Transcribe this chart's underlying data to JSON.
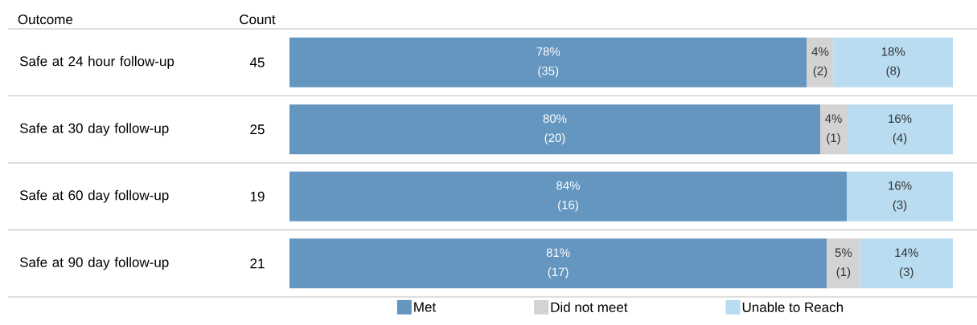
{
  "chart_data": {
    "type": "bar",
    "orientation": "horizontal",
    "stacked": true,
    "annotations": [
      "Outcome",
      "Count",
      "45",
      "25",
      "19",
      "21"
    ],
    "categories": [
      "Safe at 24 hour follow-up",
      "Safe at 30 day follow-up",
      "Safe at 60 day follow-up",
      "Safe at 90 day follow-up"
    ],
    "xlim": [
      0,
      100
    ],
    "tick_labels": "y",
    "series": [
      {
        "name": "Met",
        "color": "#6596c0",
        "values": [
          78,
          80,
          84,
          81
        ],
        "value_labels": [
          "78% (35)",
          "80% (20)",
          "84% (16)",
          "81% (17)"
        ]
      },
      {
        "name": "Did not meet",
        "color": "#d3d3d3",
        "values": [
          4,
          4,
          null,
          5
        ],
        "value_labels": [
          "4% (2)",
          "4% (1)",
          null,
          "5% (1)"
        ]
      },
      {
        "name": "Unable to Reach",
        "color": "#b9dcf0",
        "values": [
          18,
          16,
          16,
          14
        ],
        "value_labels": [
          "18% (8)",
          "16% (4)",
          "16% (3)",
          "14% (3)"
        ]
      }
    ],
    "legend": "bottom"
  }
}
